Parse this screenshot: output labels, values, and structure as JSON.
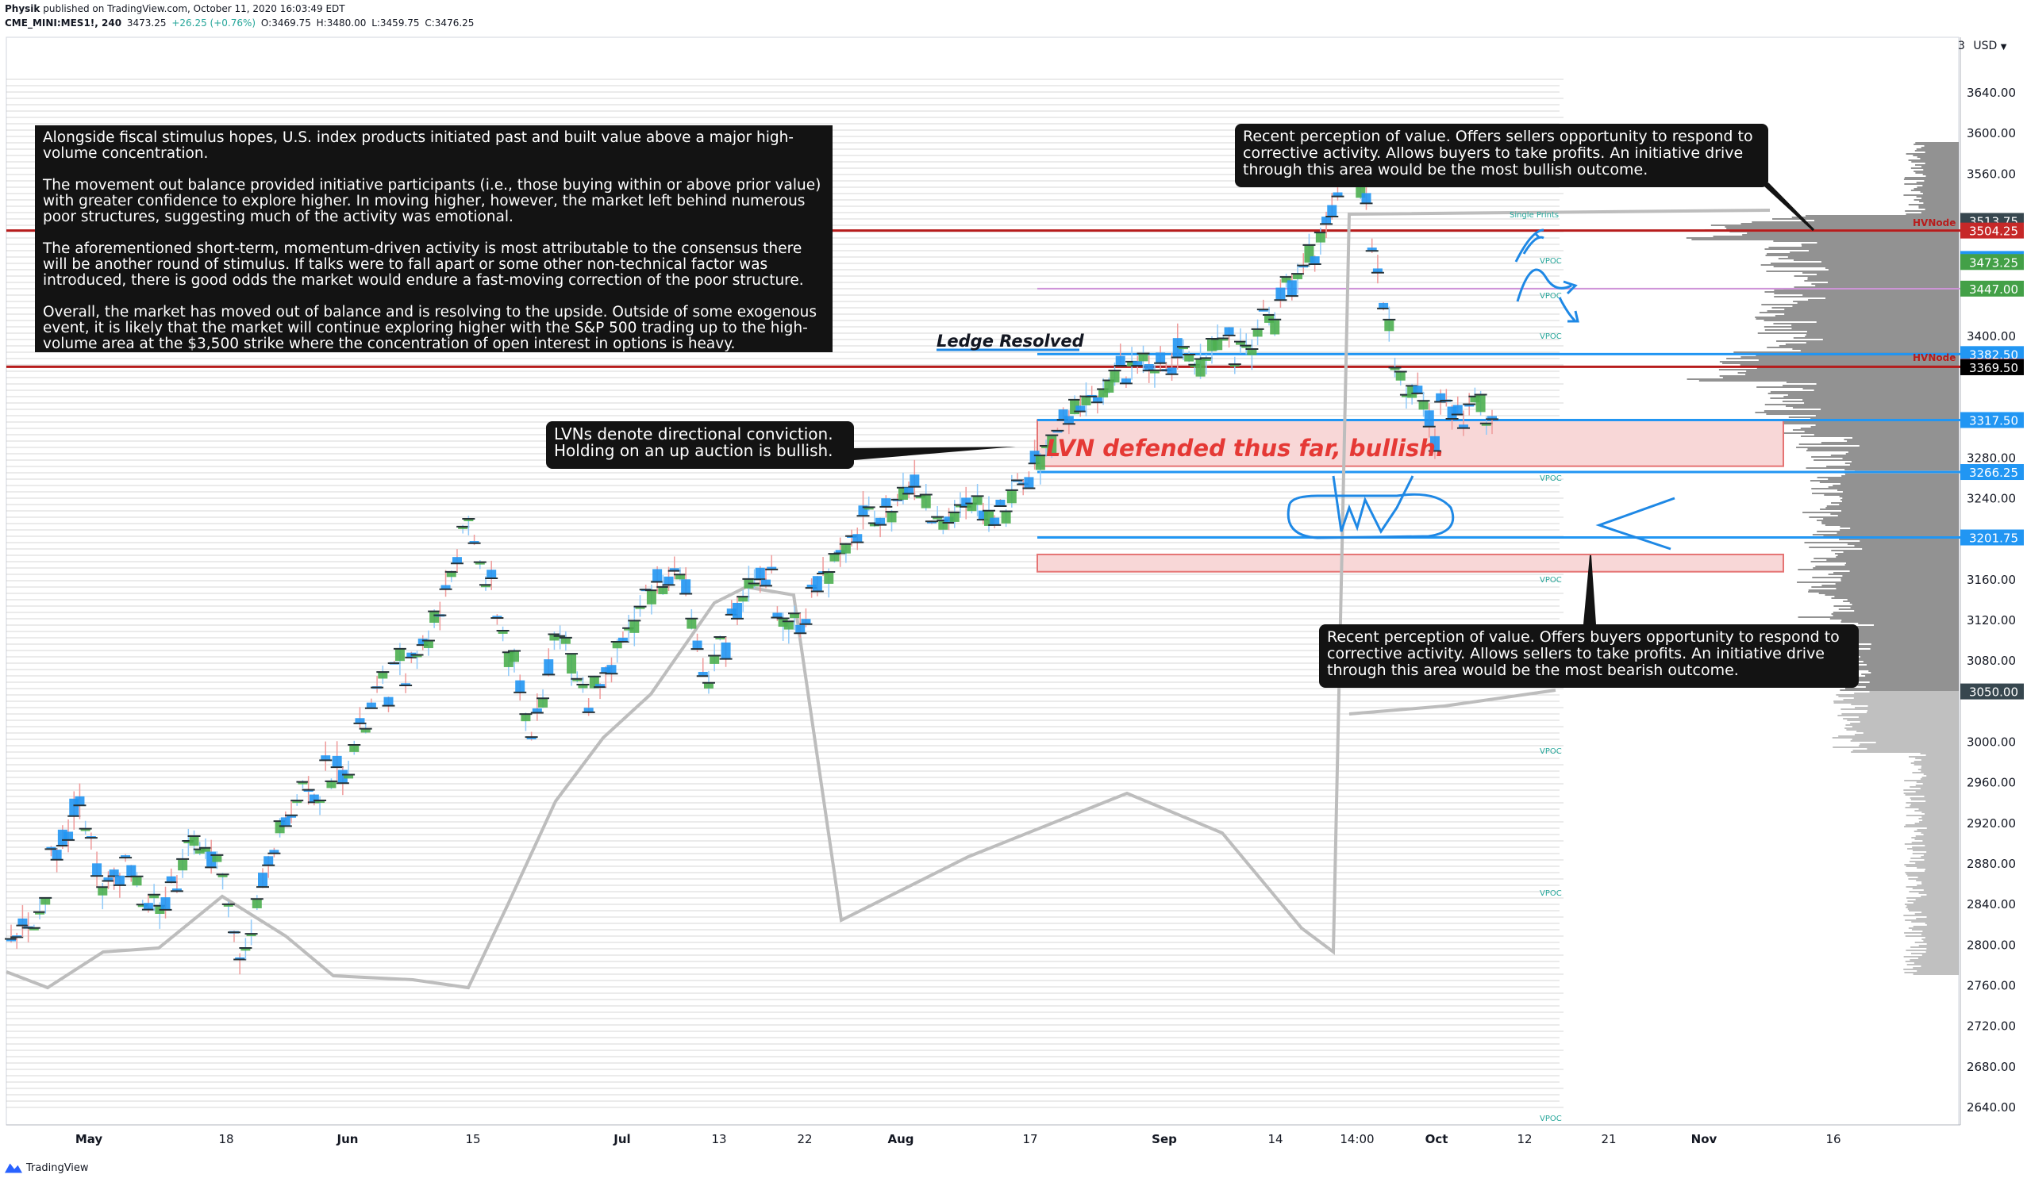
{
  "header": {
    "author": "Physik",
    "published": "published on TradingView.com, October 11, 2020 16:03:49 EDT",
    "symbol": "CME_MINI:MES1!, 240",
    "last": "3473.25",
    "change": "+26.25 (+0.76%)",
    "o": "O:3469.75",
    "h": "H:3480.00",
    "l": "L:3459.75",
    "c": "C:3476.25"
  },
  "axis": {
    "currency": "USD",
    "top_partial": "3"
  },
  "notes": {
    "main": [
      "Alongside fiscal stimulus hopes, U.S. index products initiated past and built value above a major high-volume concentration.",
      "The movement out balance provided initiative participants (i.e., those buying within or above prior value) with greater confidence to explore higher. In moving higher, however, the market left behind numerous poor structures, suggesting much of the activity was emotional.",
      "The aforementioned short-term, momentum-driven activity is most attributable to the consensus there will be another round of stimulus. If talks were to fall apart or some other non-technical factor was introduced, there is good odds the market would endure a fast-moving correction of the poor structure.",
      "Overall, the market has moved out of balance and is resolving to the upside. Outside of some exogenous event, it is likely that the market will continue exploring higher with the S&P 500 trading up to the high-volume area at the $3,500 strike where the concentration of open interest in options is heavy."
    ],
    "top_right": "Recent perception of value. Offers sellers opportunity to respond to corrective activity. Allows buyers to take profits. An initiative drive through this area would be the most bullish outcome.",
    "bottom_right": "Recent perception of value. Offers buyers opportunity to respond to corrective activity. Allows sellers to take profits. An initiative drive through this area would be the most bearish outcome.",
    "lvn": "LVNs denote directional conviction. Holding on an up auction is bullish.",
    "ledge": "Ledge Resolved",
    "lvn_defended": "LVN defended thus far, bullish.",
    "single_prints": "Single Prints",
    "vpoc": "VPOC",
    "hvnode": "HVNode"
  },
  "footer": {
    "brand": "TradingView"
  },
  "colors": {
    "up": "#26a69a",
    "green_bar": "#4caf50",
    "blue_bar": "#2196f3",
    "red_line": "#b71c1c",
    "blue_line": "#2196f3",
    "lvn_fill": "#f8d7d7",
    "lvn_stroke": "#e57373",
    "volume_profile": "#555555",
    "note_bg": "#131313"
  },
  "chart_data": {
    "type": "candlestick",
    "price_axis": {
      "min": 2620,
      "max": 3660,
      "ticks": [
        3640,
        3600,
        3560,
        3400,
        3280,
        3240,
        3160,
        3120,
        3080,
        3000,
        2960,
        2920,
        2880,
        2840,
        2800,
        2760,
        2720,
        2680,
        2640
      ]
    },
    "time_axis": {
      "labels": [
        "May",
        "18",
        "Jun",
        "15",
        "Jul",
        "13",
        "22",
        "Aug",
        "17",
        "Sep",
        "14",
        "14:00",
        "Oct",
        "12",
        "21",
        "Nov",
        "16"
      ],
      "bold": [
        "May",
        "Jun",
        "Jul",
        "Aug",
        "Sep",
        "Oct",
        "Nov"
      ]
    },
    "price_labels": [
      {
        "price": 3513.75,
        "text": "3513.75",
        "style": "dark"
      },
      {
        "price": 3504.25,
        "text": "3504.25",
        "style": "red"
      },
      {
        "price": 3476.25,
        "text": "3476.25",
        "style": "blue"
      },
      {
        "price": 3473.25,
        "text": "3473.25",
        "style": "green"
      },
      {
        "price": 3447.0,
        "text": "3447.00",
        "style": "green"
      },
      {
        "price": 3382.5,
        "text": "3382.50",
        "style": "blue"
      },
      {
        "price": 3370.0,
        "text": "3370.00",
        "style": "red"
      },
      {
        "price": 3369.5,
        "text": "3369.50",
        "style": "black"
      },
      {
        "price": 3317.5,
        "text": "3317.50",
        "style": "blue"
      },
      {
        "price": 3266.25,
        "text": "3266.25",
        "style": "blue"
      },
      {
        "price": 3201.75,
        "text": "3201.75",
        "style": "blue"
      },
      {
        "price": 3050.0,
        "text": "3050.00",
        "style": "dark"
      }
    ],
    "horizontal_levels": [
      {
        "price": 3504.25,
        "color": "red"
      },
      {
        "price": 3370.0,
        "color": "red"
      },
      {
        "price": 3382.5,
        "color": "blue"
      },
      {
        "price": 3317.5,
        "color": "blue"
      },
      {
        "price": 3266.25,
        "color": "blue"
      },
      {
        "price": 3201.75,
        "color": "blue"
      },
      {
        "price": 3447.0,
        "color": "violet"
      }
    ],
    "lvn_zones": [
      {
        "from": 3317.5,
        "to": 3272
      },
      {
        "from": 3185,
        "to": 3168
      }
    ],
    "price_path": [
      [
        0.0,
        2805
      ],
      [
        0.02,
        2830
      ],
      [
        0.03,
        2900
      ],
      [
        0.045,
        2940
      ],
      [
        0.06,
        2860
      ],
      [
        0.08,
        2885
      ],
      [
        0.1,
        2820
      ],
      [
        0.12,
        2910
      ],
      [
        0.14,
        2870
      ],
      [
        0.16,
        2780
      ],
      [
        0.17,
        2860
      ],
      [
        0.19,
        2950
      ],
      [
        0.21,
        2960
      ],
      [
        0.23,
        2990
      ],
      [
        0.25,
        3050
      ],
      [
        0.27,
        3080
      ],
      [
        0.29,
        3130
      ],
      [
        0.305,
        3210
      ],
      [
        0.315,
        3190
      ],
      [
        0.33,
        3120
      ],
      [
        0.35,
        3010
      ],
      [
        0.37,
        3110
      ],
      [
        0.39,
        3040
      ],
      [
        0.41,
        3080
      ],
      [
        0.43,
        3150
      ],
      [
        0.45,
        3170
      ],
      [
        0.47,
        3060
      ],
      [
        0.49,
        3130
      ],
      [
        0.51,
        3160
      ],
      [
        0.53,
        3110
      ],
      [
        0.55,
        3170
      ],
      [
        0.57,
        3210
      ],
      [
        0.59,
        3230
      ],
      [
        0.61,
        3250
      ],
      [
        0.63,
        3220
      ],
      [
        0.65,
        3230
      ],
      [
        0.67,
        3230
      ],
      [
        0.69,
        3270
      ],
      [
        0.71,
        3310
      ],
      [
        0.73,
        3340
      ],
      [
        0.75,
        3360
      ],
      [
        0.77,
        3370
      ],
      [
        0.79,
        3380
      ],
      [
        0.81,
        3385
      ],
      [
        0.83,
        3390
      ],
      [
        0.85,
        3420
      ],
      [
        0.87,
        3460
      ],
      [
        0.89,
        3510
      ],
      [
        0.905,
        3580
      ],
      [
        0.915,
        3530
      ],
      [
        0.93,
        3400
      ],
      [
        0.94,
        3340
      ],
      [
        0.95,
        3360
      ],
      [
        0.96,
        3300
      ],
      [
        0.97,
        3340
      ],
      [
        0.98,
        3300
      ],
      [
        0.99,
        3360
      ],
      [
        1.0,
        3300
      ]
    ]
  }
}
